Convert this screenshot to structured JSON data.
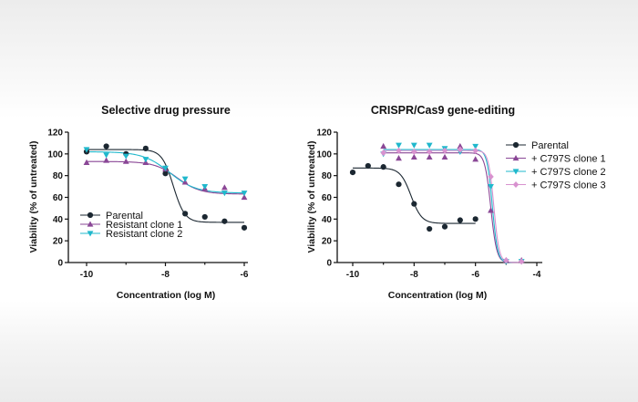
{
  "colors": {
    "parental": "#1b2731",
    "resistant_clone_1": "#8a4796",
    "resistant_clone_2": "#1fb8cc",
    "c797s_clone_1": "#8a4796",
    "c797s_clone_2": "#1fb8cc",
    "c797s_clone_3": "#d892cf"
  },
  "chart_data": [
    {
      "type": "scatter",
      "title": "Selective drug pressure",
      "xlabel": "Concentration (log M)",
      "ylabel": "Viability (% of untreated)",
      "xlim": [
        -10.3,
        -6
      ],
      "ylim": [
        0,
        120
      ],
      "xticks": [
        -10,
        -8,
        -6
      ],
      "yticks": [
        0,
        20,
        40,
        60,
        80,
        100,
        120
      ],
      "legend_position": "bottom-left",
      "series": [
        {
          "name": "Parental",
          "marker": "circle",
          "color": "#1b2731",
          "x": [
            -10,
            -9.5,
            -9,
            -8.5,
            -8,
            -7.5,
            -7,
            -6.5,
            -6
          ],
          "y": [
            102,
            107,
            100,
            105,
            82,
            45,
            42,
            38,
            32
          ],
          "fit": {
            "top": 104,
            "bottom": 37,
            "logIC50": -7.8,
            "hill": 3.0
          }
        },
        {
          "name": "Resistant clone 1",
          "marker": "triangle-up",
          "color": "#8a4796",
          "x": [
            -10,
            -9.5,
            -9,
            -8.5,
            -8,
            -7.5,
            -7,
            -6.5,
            -6
          ],
          "y": [
            92,
            94,
            93,
            92,
            86,
            74,
            68,
            69,
            60
          ],
          "fit": {
            "top": 93,
            "bottom": 63,
            "logIC50": -7.7,
            "hill": 1.5
          }
        },
        {
          "name": "Resistant clone 2",
          "marker": "triangle-down",
          "color": "#1fb8cc",
          "x": [
            -10,
            -9.5,
            -9,
            -8.5,
            -8,
            -7.5,
            -7,
            -6.5,
            -6
          ],
          "y": [
            104,
            99,
            98,
            95,
            87,
            77,
            70,
            64,
            64
          ],
          "fit": {
            "top": 102,
            "bottom": 64,
            "logIC50": -7.9,
            "hill": 1.3
          }
        }
      ]
    },
    {
      "type": "scatter",
      "title": "CRISPR/Cas9 gene-editing",
      "xlabel": "Concentration (log M)",
      "ylabel": "Viability (% of untreated)",
      "xlim": [
        -10.3,
        -4
      ],
      "ylim": [
        0,
        120
      ],
      "xticks": [
        -10,
        -8,
        -6,
        -4
      ],
      "yticks": [
        0,
        20,
        40,
        60,
        80,
        100,
        120
      ],
      "legend_position": "top-right",
      "series": [
        {
          "name": "Parental",
          "marker": "circle",
          "color": "#1b2731",
          "x": [
            -10,
            -9.5,
            -9,
            -8.5,
            -8,
            -7.5,
            -7,
            -6.5,
            -6
          ],
          "y": [
            83,
            89,
            88,
            72,
            54,
            31,
            33,
            39,
            40
          ],
          "fit": {
            "top": 87,
            "bottom": 36,
            "logIC50": -8.1,
            "hill": 2.5
          }
        },
        {
          "name": "+ C797S clone 1",
          "marker": "triangle-up",
          "color": "#8a4796",
          "x": [
            -9,
            -8.5,
            -8,
            -7.5,
            -7,
            -6.5,
            -6,
            -5.5,
            -5,
            -4.5
          ],
          "y": [
            107,
            96,
            97,
            97,
            97,
            107,
            95,
            48,
            2,
            2
          ],
          "fit": {
            "top": 101,
            "bottom": 0,
            "logIC50": -5.5,
            "hill": 4.5
          }
        },
        {
          "name": "+ C797S clone 2",
          "marker": "triangle-down",
          "color": "#1fb8cc",
          "x": [
            -9,
            -8.5,
            -8,
            -7.5,
            -7,
            -6.5,
            -6,
            -5.5,
            -5,
            -4.5
          ],
          "y": [
            100,
            108,
            108,
            108,
            105,
            102,
            107,
            70,
            1,
            1
          ],
          "fit": {
            "top": 104,
            "bottom": 0,
            "logIC50": -5.45,
            "hill": 5
          }
        },
        {
          "name": "+ C797S clone 3",
          "marker": "diamond",
          "color": "#d892cf",
          "x": [
            -9,
            -8.5,
            -8,
            -7.5,
            -7,
            -6.5,
            -6,
            -5.5,
            -5,
            -4.5
          ],
          "y": [
            101,
            103,
            102,
            102,
            103,
            104,
            103,
            79,
            2,
            1
          ],
          "fit": {
            "top": 103,
            "bottom": 0,
            "logIC50": -5.4,
            "hill": 5
          }
        }
      ]
    }
  ]
}
